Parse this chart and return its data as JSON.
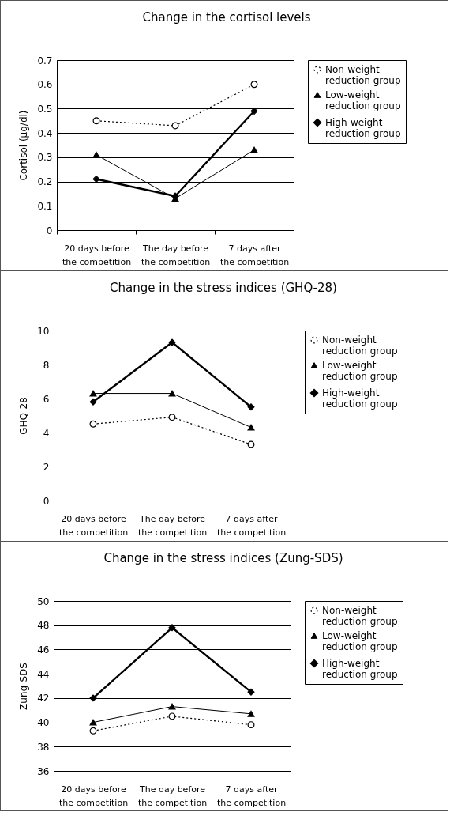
{
  "chart_data": [
    {
      "type": "line",
      "title": "Change in the cortisol levels",
      "ylabel": "Cortisol (μg/dl)",
      "categories": [
        "20 days before\nthe competition",
        "The day before\nthe competition",
        "7 days after\nthe competition"
      ],
      "ylim": [
        0,
        0.7
      ],
      "yticks": [
        0,
        0.1,
        0.2,
        0.3,
        0.4,
        0.5,
        0.6,
        0.7
      ],
      "grid": "y",
      "legend": "right",
      "series": [
        {
          "name": "Non-weight\nreduction group",
          "color": "#000000",
          "marker": "circle",
          "line_style": "dotted",
          "values": [
            0.45,
            0.43,
            0.6
          ]
        },
        {
          "name": "Low-weight\nreduction group",
          "color": "#000000",
          "marker": "triangle",
          "line_style": "solid",
          "values": [
            0.31,
            0.13,
            0.33
          ]
        },
        {
          "name": "High-weight\nreduction group",
          "color": "#000000",
          "marker": "diamond",
          "line_style": "solid",
          "values": [
            0.21,
            0.14,
            0.49
          ]
        }
      ]
    },
    {
      "type": "line",
      "title": "Change in the stress indices (GHQ-28)",
      "ylabel": "GHQ-28",
      "categories": [
        "20 days before\nthe competition",
        "The day before\nthe competition",
        "7 days after\nthe competition"
      ],
      "ylim": [
        0,
        10
      ],
      "yticks": [
        0,
        2,
        4,
        6,
        8,
        10
      ],
      "grid": "y",
      "legend": "right",
      "series": [
        {
          "name": "Non-weight\nreduction group",
          "color": "#000000",
          "marker": "circle",
          "line_style": "dotted",
          "values": [
            4.5,
            4.9,
            3.3
          ]
        },
        {
          "name": "Low-weight\nreduction group",
          "color": "#000000",
          "marker": "triangle",
          "line_style": "solid",
          "values": [
            6.3,
            6.3,
            4.3
          ]
        },
        {
          "name": "High-weight\nreduction group",
          "color": "#000000",
          "marker": "diamond",
          "line_style": "solid",
          "values": [
            5.8,
            9.3,
            5.5
          ]
        }
      ]
    },
    {
      "type": "line",
      "title": "Change in the stress indices (Zung-SDS)",
      "ylabel": "Zung-SDS",
      "categories": [
        "20 days before\nthe competition",
        "The day before\nthe competition",
        "7 days after\nthe competition"
      ],
      "ylim": [
        36,
        50
      ],
      "yticks": [
        36,
        38,
        40,
        42,
        44,
        46,
        48,
        50
      ],
      "grid": "y",
      "legend": "right",
      "series": [
        {
          "name": "Non-weight\nreduction group",
          "color": "#000000",
          "marker": "circle",
          "line_style": "dotted",
          "values": [
            39.3,
            40.5,
            39.8
          ]
        },
        {
          "name": "Low-weight\nreduction group",
          "color": "#000000",
          "marker": "triangle",
          "line_style": "solid",
          "values": [
            40.0,
            41.3,
            40.7
          ]
        },
        {
          "name": "High-weight\nreduction group",
          "color": "#000000",
          "marker": "diamond",
          "line_style": "solid",
          "values": [
            42.0,
            47.8,
            42.5
          ]
        }
      ]
    }
  ]
}
